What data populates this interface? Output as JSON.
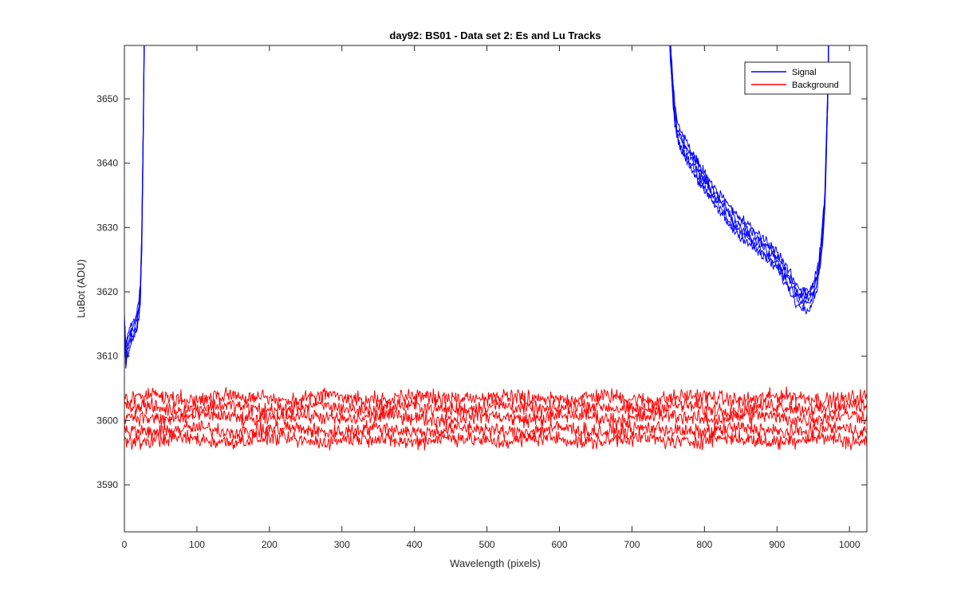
{
  "chart_data": {
    "type": "line",
    "title": "day92: BS01 - Data set 2: Es and Lu Tracks",
    "xlabel": "Wavelength (pixels)",
    "ylabel": "LuBot (ADU)",
    "xlim": [
      0,
      1024
    ],
    "ylim": [
      3582.7,
      3658.3
    ],
    "xticks": [
      0,
      100,
      200,
      300,
      400,
      500,
      600,
      700,
      800,
      900,
      1000
    ],
    "yticks": [
      3590,
      3600,
      3610,
      3620,
      3630,
      3640,
      3650
    ],
    "grid": false,
    "legend_position": "top-right",
    "legend": [
      "Signal",
      "Background"
    ],
    "series": [
      {
        "name": "Signal",
        "color": "#0000ff",
        "traces": 5,
        "noise_amplitude": 1.2,
        "x": [
          0,
          2,
          5,
          8,
          12,
          16,
          20,
          22,
          24,
          26,
          28,
          750,
          752,
          755,
          758,
          762,
          770,
          780,
          790,
          800,
          820,
          840,
          860,
          880,
          900,
          910,
          920,
          930,
          940,
          945,
          950,
          955,
          958,
          962,
          966,
          970,
          972
        ],
        "y": [
          3615,
          3610,
          3612,
          3613,
          3614,
          3615,
          3617,
          3620,
          3628,
          3645,
          3665,
          3665,
          3660,
          3654,
          3649,
          3645,
          3643,
          3641,
          3639,
          3637,
          3634,
          3631,
          3629,
          3627,
          3625,
          3623,
          3621,
          3619,
          3619,
          3619,
          3620,
          3622,
          3624,
          3628,
          3634,
          3650,
          3665
        ]
      },
      {
        "name": "Background",
        "color": "#ff0000",
        "x_range": [
          0,
          1024
        ],
        "trace_levels": [
          3603.5,
          3602,
          3600.5,
          3598.5,
          3597
        ],
        "noise_amplitude": 1.8
      }
    ]
  }
}
